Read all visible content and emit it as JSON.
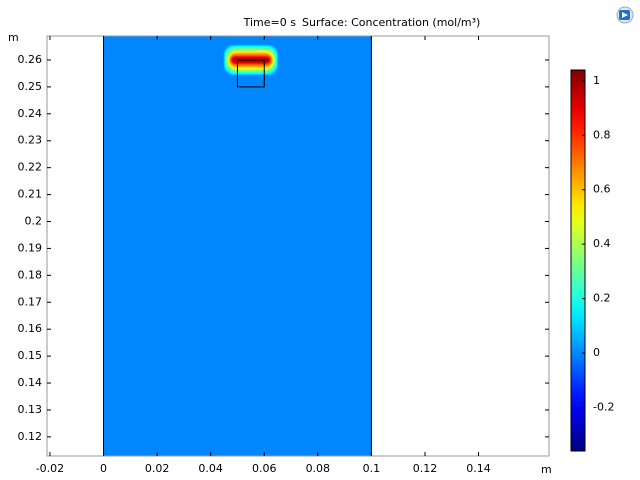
{
  "chart_data": {
    "type": "surface",
    "title": "Time=0 s",
    "subtitle": "Surface: Concentration (mol/m³)",
    "xlabel": "m",
    "ylabel": "m",
    "xlim": [
      -0.0211,
      0.1663
    ],
    "xticks": [
      -0.02,
      0,
      0.02,
      0.04,
      0.06,
      0.08,
      0.1,
      0.12,
      0.14
    ],
    "ylim": [
      0.1129,
      0.2689
    ],
    "yticks": [
      0.12,
      0.13,
      0.14,
      0.15,
      0.16,
      0.17,
      0.18,
      0.19,
      0.2,
      0.21,
      0.22,
      0.23,
      0.24,
      0.25,
      0.26
    ],
    "domain": {
      "x": [
        0,
        0.1
      ],
      "value": 0
    },
    "box": {
      "x": [
        0.05,
        0.06
      ],
      "y": [
        0.25,
        0.26
      ]
    },
    "hotspot": {
      "x": 0.055,
      "y": 0.26,
      "peak": 1
    },
    "colormap": "jet",
    "clim": [
      -0.36,
      1.04
    ],
    "cticks": [
      -0.2,
      0,
      0.2,
      0.4,
      0.6,
      0.8,
      1
    ],
    "grid": false
  }
}
